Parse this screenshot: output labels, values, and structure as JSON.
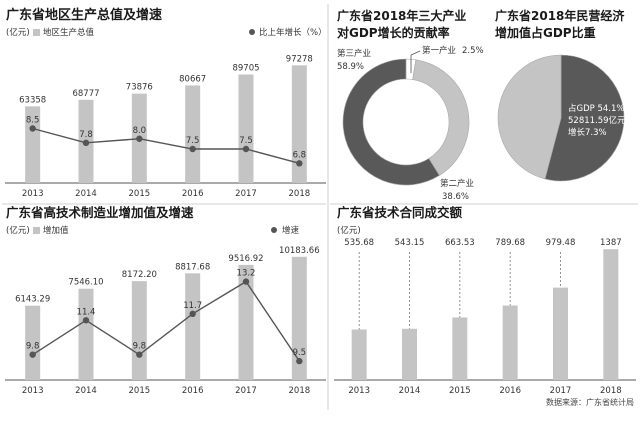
{
  "footer": {
    "source": "数据来源：广东省统计局"
  },
  "chart_data": [
    {
      "id": "gdp",
      "type": "bar+line",
      "title": "广东省地区生产总值及增速",
      "ylabel": "(亿元)",
      "legend_bar": "地区生产总值",
      "legend_line": "比上年增长（%）",
      "legend_position": "top",
      "categories": [
        "2013",
        "2014",
        "2015",
        "2016",
        "2017",
        "2018"
      ],
      "bar_values": [
        63358,
        68777,
        73876,
        80667,
        89705,
        97278
      ],
      "bar_labels": [
        "63358",
        "68777",
        "73876",
        "80667",
        "89705",
        "97278"
      ],
      "line_values": [
        8.5,
        7.8,
        8.0,
        7.5,
        7.5,
        6.8
      ],
      "line_labels": [
        "8.5",
        "7.8",
        "8.0",
        "7.5",
        "7.5",
        "6.8"
      ],
      "bar_ylim": [
        0,
        105000
      ],
      "line_ylim": [
        5.5,
        9.5
      ],
      "grid": false
    },
    {
      "id": "industry",
      "type": "pie",
      "title_lines": [
        "广东省2018年三大产业",
        "对GDP增长的贡献率"
      ],
      "labels": [
        "第一产业",
        "第二产业",
        "第三产业"
      ],
      "values": [
        2.5,
        38.6,
        58.9
      ],
      "value_labels": [
        "2.5%",
        "38.6%",
        "58.9%"
      ],
      "colors": [
        "#ffffff",
        "#c4c4c4",
        "#595959"
      ]
    },
    {
      "id": "private",
      "type": "pie",
      "title_lines": [
        "广东省2018年民营经济",
        "增加值占GDP比重"
      ],
      "values": [
        54.1,
        45.9
      ],
      "colors": [
        "#595959",
        "#c4c4c4"
      ],
      "annotation_lines": [
        "占GDP 54.1%",
        "52811.59亿元",
        "增长7.3%"
      ]
    },
    {
      "id": "hightech",
      "type": "bar+line",
      "title": "广东省高技术制造业增加值及增速",
      "ylabel": "(亿元)",
      "legend_bar": "增加值",
      "legend_line": "增速",
      "legend_position": "top",
      "categories": [
        "2013",
        "2014",
        "2015",
        "2016",
        "2017",
        "2018"
      ],
      "bar_values": [
        6143.29,
        7546.1,
        8172.2,
        8817.68,
        9516.92,
        10183.66
      ],
      "bar_labels": [
        "6143.29",
        "7546.10",
        "8172.20",
        "8817.68",
        "9516.92",
        "10183.66"
      ],
      "line_values": [
        9.8,
        11.4,
        9.8,
        11.7,
        13.2,
        9.5
      ],
      "line_labels": [
        "9.8",
        "11.4",
        "9.8",
        "11.7",
        "13.2",
        "9.5"
      ],
      "bar_ylim": [
        0,
        10500
      ],
      "line_ylim": [
        8.9,
        13.6
      ],
      "grid": false
    },
    {
      "id": "contract",
      "type": "bar",
      "title": "广东省技术合同成交额",
      "ylabel": "(亿元)",
      "categories": [
        "2013",
        "2014",
        "2015",
        "2016",
        "2017",
        "2018"
      ],
      "values": [
        535.68,
        543.15,
        663.53,
        789.68,
        979.48,
        1387
      ],
      "value_labels": [
        "535.68",
        "543.15",
        "663.53",
        "789.68",
        "979.48",
        "1387"
      ],
      "ylim": [
        0,
        1400
      ],
      "grid": false
    }
  ]
}
